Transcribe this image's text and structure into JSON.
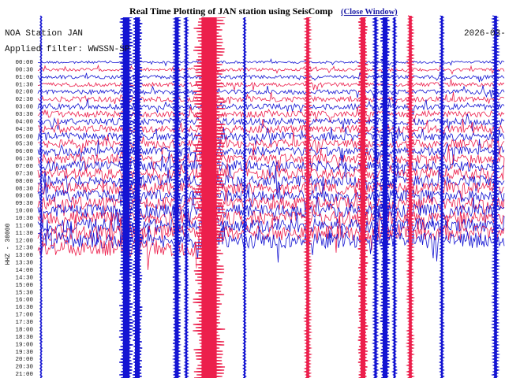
{
  "title": "Real Time Plotting of JAN station using SeisComp",
  "close_link": "(Close Window)",
  "station": "NOA Station JAN",
  "date": "2026-03-",
  "filter": "Applied filter: WWSSN-SP",
  "channel": "HHZ - 30000",
  "time_labels": [
    "00:00",
    "00:30",
    "01:00",
    "01:30",
    "02:00",
    "02:30",
    "03:00",
    "03:30",
    "04:00",
    "04:30",
    "05:00",
    "05:30",
    "06:00",
    "06:30",
    "07:00",
    "07:30",
    "08:00",
    "08:30",
    "09:00",
    "09:30",
    "10:00",
    "10:30",
    "11:00",
    "11:30",
    "12:00",
    "12:30",
    "13:00",
    "13:30",
    "14:00",
    "14:30",
    "15:00",
    "15:30",
    "16:00",
    "16:30",
    "17:00",
    "17:30",
    "18:00",
    "18:30",
    "19:00",
    "19:30",
    "20:00",
    "20:30",
    "21:00"
  ]
}
